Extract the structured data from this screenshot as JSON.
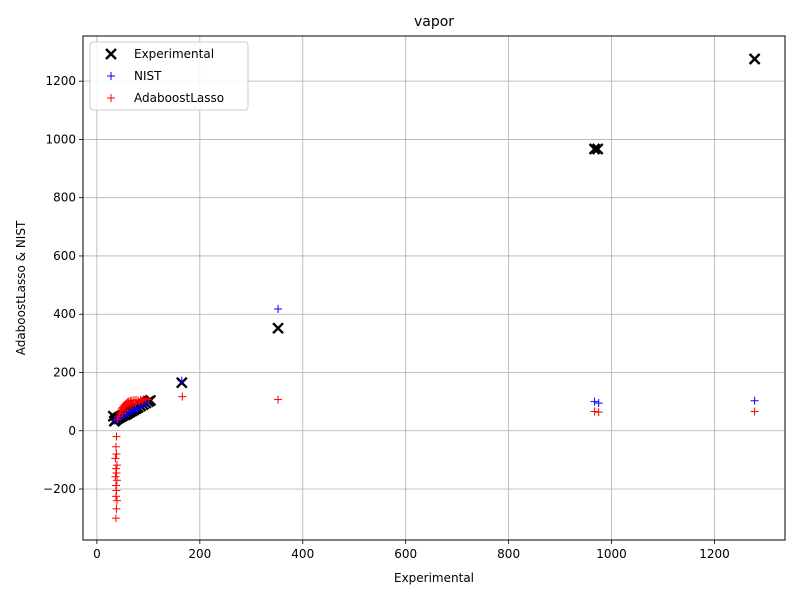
{
  "chart_data": {
    "type": "scatter",
    "title": "vapor",
    "xlabel": "Experimental",
    "ylabel": "AdaboostLasso & NIST",
    "xlim": [
      -27,
      1337
    ],
    "ylim": [
      -375,
      1355
    ],
    "xticks": [
      0,
      200,
      400,
      600,
      800,
      1000,
      1200
    ],
    "yticks": [
      -200,
      0,
      200,
      400,
      600,
      800,
      1000,
      1200
    ],
    "grid": true,
    "legend_position": "top-left",
    "series": [
      {
        "name": "Experimental",
        "marker": "x",
        "color": "#000000",
        "points": [
          [
            32,
            50
          ],
          [
            34,
            33
          ],
          [
            36,
            36
          ],
          [
            38,
            40
          ],
          [
            40,
            42
          ],
          [
            42,
            44
          ],
          [
            44,
            46
          ],
          [
            46,
            48
          ],
          [
            48,
            50
          ],
          [
            50,
            52
          ],
          [
            52,
            54
          ],
          [
            55,
            55
          ],
          [
            58,
            58
          ],
          [
            60,
            60
          ],
          [
            64,
            64
          ],
          [
            68,
            68
          ],
          [
            72,
            72
          ],
          [
            76,
            76
          ],
          [
            80,
            80
          ],
          [
            85,
            85
          ],
          [
            90,
            90
          ],
          [
            95,
            95
          ],
          [
            100,
            100
          ],
          [
            104,
            104
          ],
          [
            165,
            165
          ],
          [
            352,
            352
          ],
          [
            967,
            967
          ],
          [
            973,
            967
          ],
          [
            1278,
            1276
          ]
        ]
      },
      {
        "name": "NIST",
        "marker": "+",
        "color": "#0000ff",
        "points": [
          [
            34,
            35
          ],
          [
            38,
            39
          ],
          [
            42,
            43
          ],
          [
            46,
            46
          ],
          [
            50,
            50
          ],
          [
            54,
            54
          ],
          [
            58,
            58
          ],
          [
            62,
            62
          ],
          [
            66,
            66
          ],
          [
            70,
            69
          ],
          [
            74,
            74
          ],
          [
            78,
            78
          ],
          [
            82,
            82
          ],
          [
            88,
            88
          ],
          [
            94,
            94
          ],
          [
            100,
            99
          ],
          [
            165,
            172
          ],
          [
            352,
            418
          ],
          [
            967,
            100
          ],
          [
            975,
            95
          ],
          [
            1278,
            103
          ]
        ]
      },
      {
        "name": "AdaboostLasso",
        "marker": "+",
        "color": "#ff0000",
        "points": [
          [
            38,
            -20
          ],
          [
            37,
            -55
          ],
          [
            38,
            -80
          ],
          [
            36,
            -95
          ],
          [
            39,
            -118
          ],
          [
            37,
            -130
          ],
          [
            38,
            -145
          ],
          [
            36,
            -158
          ],
          [
            39,
            -170
          ],
          [
            37,
            -188
          ],
          [
            38,
            -205
          ],
          [
            37,
            -225
          ],
          [
            39,
            -240
          ],
          [
            38,
            -268
          ],
          [
            37,
            -300
          ],
          [
            40,
            40
          ],
          [
            42,
            50
          ],
          [
            44,
            60
          ],
          [
            46,
            68
          ],
          [
            48,
            75
          ],
          [
            50,
            80
          ],
          [
            52,
            85
          ],
          [
            54,
            88
          ],
          [
            56,
            92
          ],
          [
            58,
            95
          ],
          [
            60,
            98
          ],
          [
            62,
            100
          ],
          [
            65,
            102
          ],
          [
            68,
            104
          ],
          [
            72,
            105
          ],
          [
            76,
            106
          ],
          [
            80,
            104
          ],
          [
            85,
            106
          ],
          [
            90,
            108
          ],
          [
            95,
            110
          ],
          [
            100,
            107
          ],
          [
            50,
            60
          ],
          [
            55,
            70
          ],
          [
            60,
            78
          ],
          [
            66,
            85
          ],
          [
            70,
            90
          ],
          [
            75,
            95
          ],
          [
            82,
            98
          ],
          [
            88,
            102
          ],
          [
            166,
            117
          ],
          [
            352,
            107
          ],
          [
            967,
            66
          ],
          [
            975,
            64
          ],
          [
            1278,
            66
          ]
        ]
      }
    ]
  }
}
